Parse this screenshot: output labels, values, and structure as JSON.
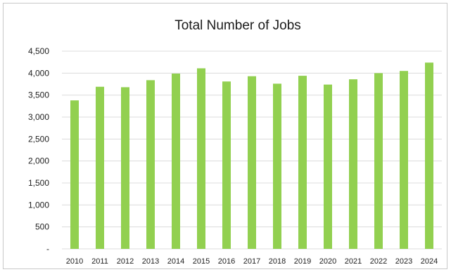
{
  "chart_data": {
    "type": "bar",
    "title": "Total Number of Jobs",
    "categories": [
      "2010",
      "2011",
      "2012",
      "2013",
      "2014",
      "2015",
      "2016",
      "2017",
      "2018",
      "2019",
      "2020",
      "2021",
      "2022",
      "2023",
      "2024"
    ],
    "values": [
      3380,
      3690,
      3680,
      3840,
      3990,
      4110,
      3810,
      3930,
      3760,
      3940,
      3740,
      3860,
      4000,
      4050,
      4240
    ],
    "ylim": [
      0,
      4500
    ],
    "yticks": [
      0,
      500,
      1000,
      1500,
      2000,
      2500,
      3000,
      3500,
      4000,
      4500
    ],
    "ytick_labels": [
      "-",
      "500",
      "1,000",
      "1,500",
      "2,000",
      "2,500",
      "3,000",
      "3,500",
      "4,000",
      "4,500"
    ],
    "xlabel": "",
    "ylabel": "",
    "grid": true,
    "legend": "none",
    "colors": {
      "bar": "#92d050",
      "grid": "#dcdcdc",
      "text": "#222222"
    }
  }
}
